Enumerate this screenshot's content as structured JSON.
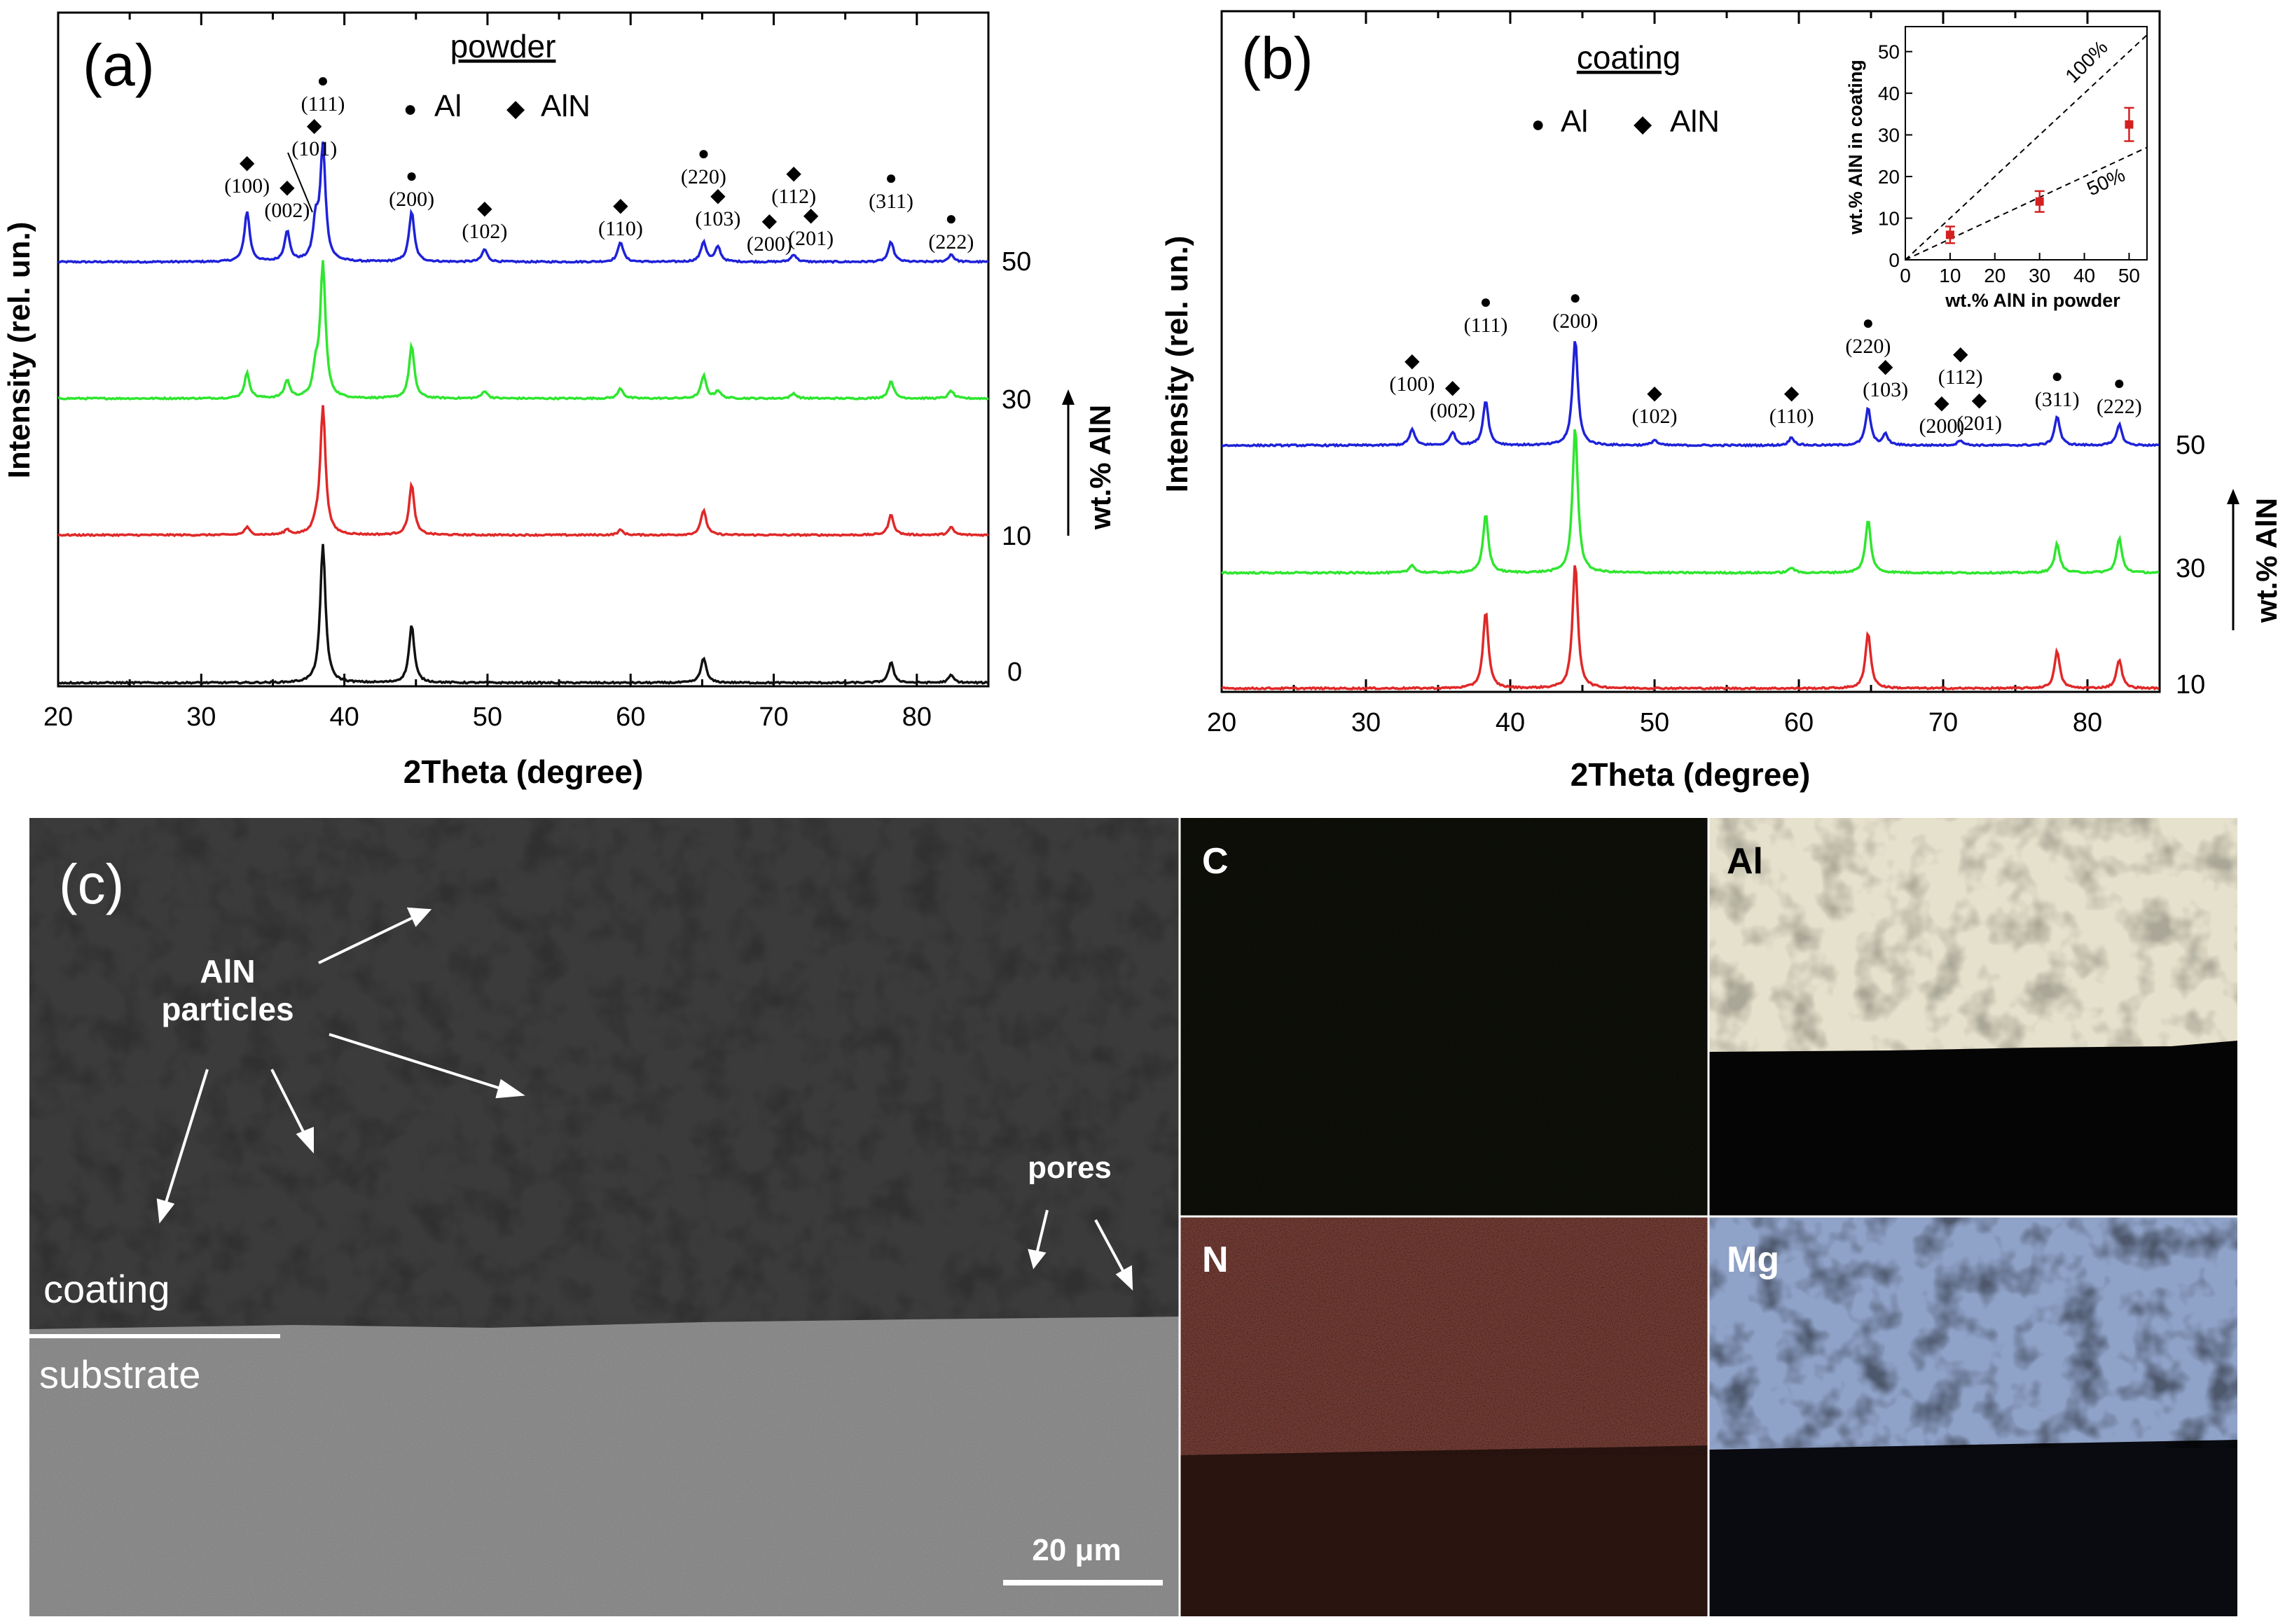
{
  "panel_a": {
    "letter": "(a)",
    "title": "powder",
    "legend": {
      "al_symbol": "●",
      "al_label": "Al",
      "aln_symbol": "◆",
      "aln_label": "AlN"
    },
    "xlabel": "2Theta (degree)",
    "ylabel": "Intensity (rel. un.)",
    "side_label": "wt.% AlN",
    "series_labels": [
      "50",
      "30",
      "10",
      "0"
    ],
    "x_ticks": [
      "20",
      "30",
      "40",
      "50",
      "60",
      "70",
      "80"
    ],
    "peak_labels": [
      {
        "label": "(100)",
        "marker": "◆",
        "x": 33.2
      },
      {
        "label": "(002)",
        "marker": "◆",
        "x": 36.0
      },
      {
        "label": "(101)",
        "marker": "◆",
        "x": 37.9
      },
      {
        "label": "(111)",
        "marker": "●",
        "x": 38.5
      },
      {
        "label": "(200)",
        "marker": "●",
        "x": 44.7
      },
      {
        "label": "(102)",
        "marker": "◆",
        "x": 49.8
      },
      {
        "label": "(110)",
        "marker": "◆",
        "x": 59.3
      },
      {
        "label": "(220)",
        "marker": "●",
        "x": 65.1
      },
      {
        "label": "(103)",
        "marker": "◆",
        "x": 66.1
      },
      {
        "label": "(200)",
        "marker": "◆",
        "x": 69.7
      },
      {
        "label": "(112)",
        "marker": "◆",
        "x": 71.4
      },
      {
        "label": "(201)",
        "marker": "◆",
        "x": 72.6
      },
      {
        "label": "(311)",
        "marker": "●",
        "x": 78.2
      },
      {
        "label": "(222)",
        "marker": "●",
        "x": 82.4
      }
    ]
  },
  "panel_b": {
    "letter": "(b)",
    "title": "coating",
    "legend": {
      "al_symbol": "●",
      "al_label": "Al",
      "aln_symbol": "◆",
      "aln_label": "AlN"
    },
    "xlabel": "2Theta (degree)",
    "ylabel": "Intensity (rel. un.)",
    "side_label": "wt.% AlN",
    "series_labels": [
      "50",
      "30",
      "10"
    ],
    "x_ticks": [
      "20",
      "30",
      "40",
      "50",
      "60",
      "70",
      "80"
    ],
    "peak_labels": [
      {
        "label": "(100)",
        "marker": "◆",
        "x": 33.2
      },
      {
        "label": "(002)",
        "marker": "◆",
        "x": 36.0
      },
      {
        "label": "(111)",
        "marker": "●",
        "x": 38.3
      },
      {
        "label": "(200)",
        "marker": "●",
        "x": 44.5
      },
      {
        "label": "(102)",
        "marker": "◆",
        "x": 50.0
      },
      {
        "label": "(110)",
        "marker": "◆",
        "x": 59.5
      },
      {
        "label": "(220)",
        "marker": "●",
        "x": 64.8
      },
      {
        "label": "(103)",
        "marker": "◆",
        "x": 66.0
      },
      {
        "label": "(200)",
        "marker": "◆",
        "x": 69.9
      },
      {
        "label": "(112)",
        "marker": "◆",
        "x": 71.2
      },
      {
        "label": "(201)",
        "marker": "◆",
        "x": 72.5
      },
      {
        "label": "(311)",
        "marker": "●",
        "x": 77.9
      },
      {
        "label": "(222)",
        "marker": "●",
        "x": 82.2
      }
    ],
    "inset": {
      "xlabel": "wt.% AlN in powder",
      "ylabel": "wt.% AlN in coating",
      "x_ticks": [
        "0",
        "10",
        "20",
        "30",
        "40",
        "50"
      ],
      "y_ticks": [
        "0",
        "10",
        "20",
        "30",
        "40",
        "50"
      ],
      "line_100": "100%",
      "line_50": "50%"
    }
  },
  "panel_c": {
    "letter": "(c)",
    "annotation_particles_line1": "AlN",
    "annotation_particles_line2": "particles",
    "annotation_pores": "pores",
    "label_coating": "coating",
    "label_substrate": "substrate",
    "scale_bar": "20 μm",
    "maps": [
      {
        "element": "C",
        "color": "#7f9a3a"
      },
      {
        "element": "Al",
        "color": "#f0ecd8"
      },
      {
        "element": "N",
        "color": "#d87868"
      },
      {
        "element": "Mg",
        "color": "#a8bde8"
      }
    ]
  },
  "colors": {
    "s50": "#1f22d8",
    "s30": "#2fe62f",
    "s10": "#e02828",
    "s0": "#111111",
    "marker_red": "#d42020"
  },
  "chart_data": [
    {
      "type": "line",
      "title": "powder",
      "xlabel": "2Theta (degree)",
      "ylabel": "Intensity (rel. un.)",
      "xlim": [
        20,
        85
      ],
      "series": [
        {
          "name": "50",
          "peaks": [
            [
              33.2,
              0.2
            ],
            [
              36.0,
              0.12
            ],
            [
              38.0,
              0.15
            ],
            [
              38.5,
              0.45
            ],
            [
              44.7,
              0.2
            ],
            [
              49.8,
              0.05
            ],
            [
              59.3,
              0.08
            ],
            [
              65.1,
              0.08
            ],
            [
              66.1,
              0.06
            ],
            [
              71.4,
              0.03
            ],
            [
              78.2,
              0.08
            ],
            [
              82.4,
              0.03
            ]
          ]
        },
        {
          "name": "30",
          "peaks": [
            [
              33.2,
              0.1
            ],
            [
              36.0,
              0.07
            ],
            [
              38.0,
              0.1
            ],
            [
              38.5,
              0.53
            ],
            [
              44.7,
              0.21
            ],
            [
              49.8,
              0.03
            ],
            [
              59.3,
              0.04
            ],
            [
              65.1,
              0.09
            ],
            [
              66.1,
              0.03
            ],
            [
              71.4,
              0.02
            ],
            [
              78.2,
              0.07
            ],
            [
              82.4,
              0.03
            ]
          ]
        },
        {
          "name": "10",
          "peaks": [
            [
              33.2,
              0.03
            ],
            [
              36.0,
              0.02
            ],
            [
              38.0,
              0.03
            ],
            [
              38.5,
              0.51
            ],
            [
              44.7,
              0.2
            ],
            [
              59.3,
              0.02
            ],
            [
              65.1,
              0.1
            ],
            [
              78.2,
              0.08
            ],
            [
              82.4,
              0.03
            ]
          ]
        },
        {
          "name": "0",
          "peaks": [
            [
              38.5,
              0.55
            ],
            [
              44.7,
              0.23
            ],
            [
              65.1,
              0.1
            ],
            [
              78.2,
              0.08
            ],
            [
              82.4,
              0.03
            ]
          ]
        }
      ]
    },
    {
      "type": "line",
      "title": "coating",
      "xlabel": "2Theta (degree)",
      "ylabel": "Intensity (rel. un.)",
      "xlim": [
        20,
        85
      ],
      "series": [
        {
          "name": "50",
          "peaks": [
            [
              33.2,
              0.06
            ],
            [
              36.0,
              0.05
            ],
            [
              38.3,
              0.17
            ],
            [
              44.5,
              0.4
            ],
            [
              50.0,
              0.02
            ],
            [
              59.5,
              0.03
            ],
            [
              64.8,
              0.14
            ],
            [
              66.0,
              0.04
            ],
            [
              71.2,
              0.02
            ],
            [
              77.9,
              0.11
            ],
            [
              82.2,
              0.08
            ]
          ]
        },
        {
          "name": "30",
          "peaks": [
            [
              33.2,
              0.03
            ],
            [
              38.3,
              0.22
            ],
            [
              44.5,
              0.55
            ],
            [
              59.5,
              0.02
            ],
            [
              64.8,
              0.2
            ],
            [
              77.9,
              0.11
            ],
            [
              82.2,
              0.13
            ]
          ]
        },
        {
          "name": "10",
          "peaks": [
            [
              38.3,
              0.29
            ],
            [
              44.5,
              0.47
            ],
            [
              64.8,
              0.21
            ],
            [
              77.9,
              0.14
            ],
            [
              82.2,
              0.11
            ]
          ]
        }
      ]
    },
    {
      "type": "scatter",
      "title": "",
      "xlabel": "wt.% AlN in powder",
      "ylabel": "wt.% AlN in coating",
      "xlim": [
        0,
        52
      ],
      "ylim": [
        0,
        55
      ],
      "points": [
        {
          "x": 10,
          "y": 6,
          "err": 2
        },
        {
          "x": 30,
          "y": 14,
          "err": 2.5
        },
        {
          "x": 50,
          "y": 32.5,
          "err": 4
        }
      ],
      "reference_lines": [
        {
          "label": "100%",
          "slope": 1.0
        },
        {
          "label": "50%",
          "slope": 0.5
        }
      ]
    }
  ]
}
